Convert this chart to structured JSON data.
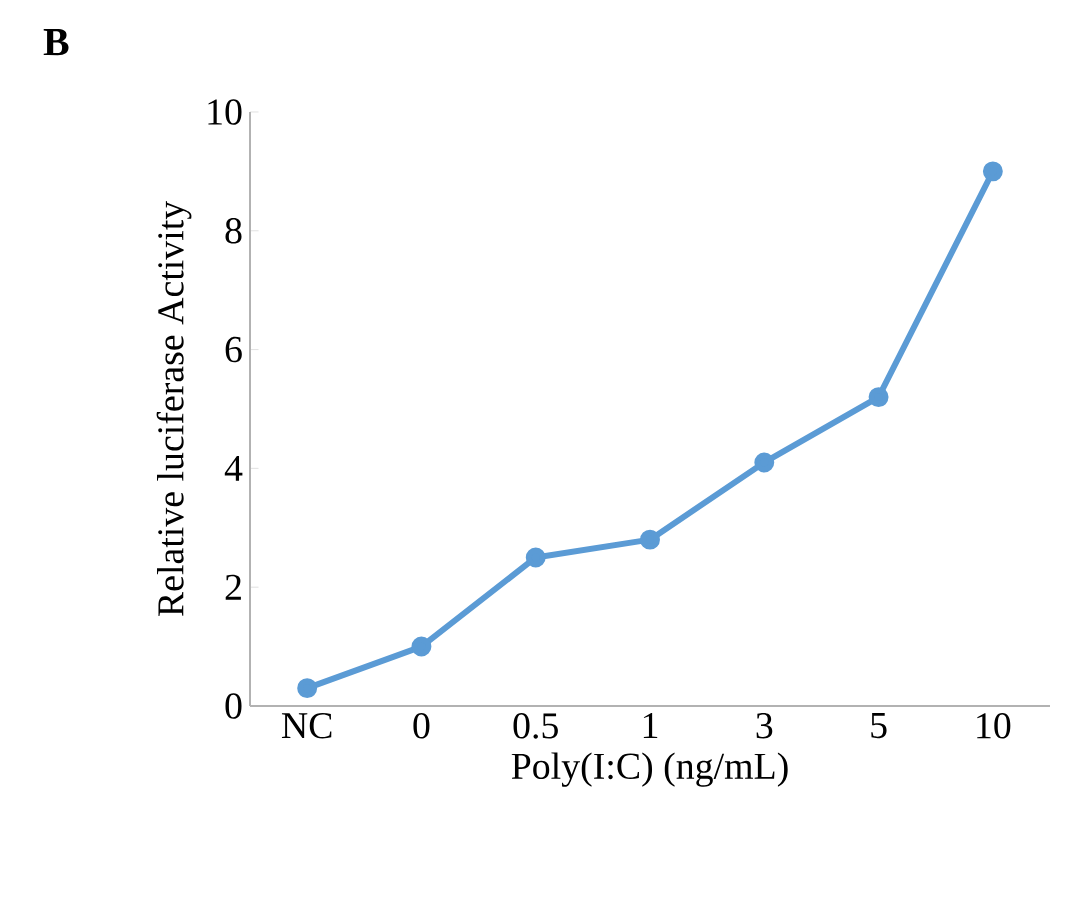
{
  "chart_data": {
    "type": "line",
    "annotations": [
      "B"
    ],
    "xlabel": "Poly(I:C)  (ng/mL)",
    "ylabel": "Relative  luciferase  Activity",
    "categories": [
      "NC",
      "0",
      "0.5",
      "1",
      "3",
      "5",
      "10"
    ],
    "values": [
      0.3,
      1.0,
      2.5,
      2.8,
      4.1,
      5.2,
      9.0
    ],
    "color": "#5b9bd5",
    "marker": "circle",
    "ylim": [
      0,
      10
    ],
    "yticks": [
      0,
      2,
      4,
      6,
      8,
      10
    ]
  }
}
